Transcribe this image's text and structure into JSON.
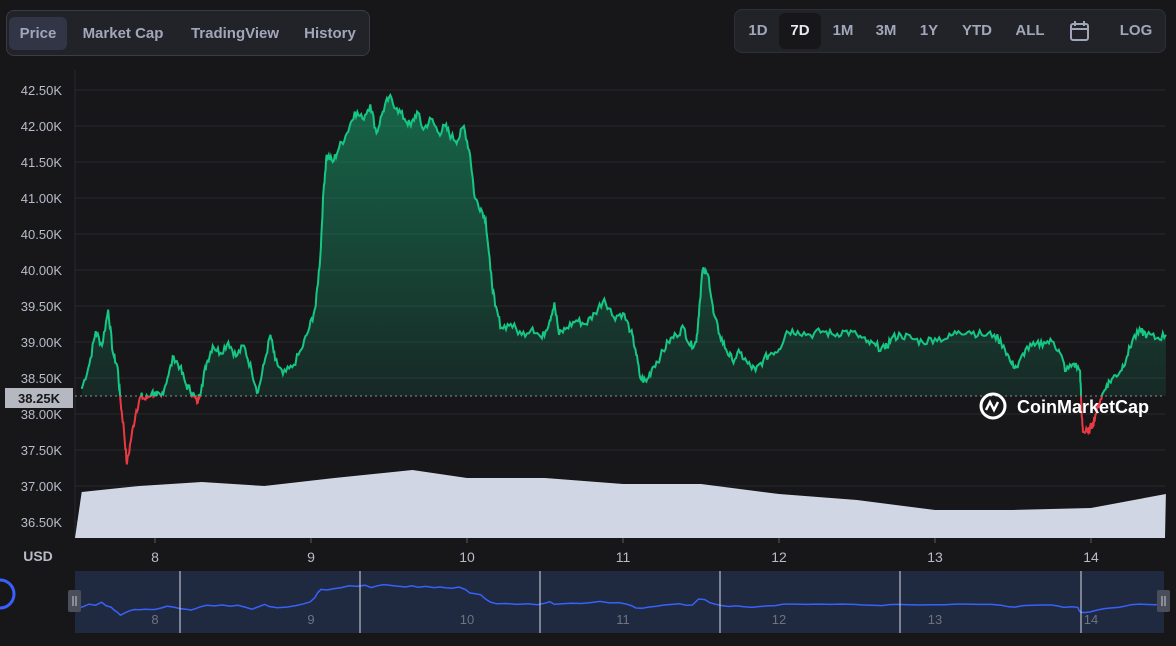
{
  "tabs": [
    {
      "label": "Price",
      "active": true
    },
    {
      "label": "Market Cap",
      "active": false
    },
    {
      "label": "TradingView",
      "active": false
    },
    {
      "label": "History",
      "active": false
    }
  ],
  "ranges": [
    {
      "label": "1D",
      "active": false
    },
    {
      "label": "7D",
      "active": true
    },
    {
      "label": "1M",
      "active": false
    },
    {
      "label": "3M",
      "active": false
    },
    {
      "label": "1Y",
      "active": false
    },
    {
      "label": "YTD",
      "active": false
    },
    {
      "label": "ALL",
      "active": false
    }
  ],
  "calendar_icon": "calendar-icon",
  "log_label": "LOG",
  "watermark": "CoinMarketCap",
  "chart_data": {
    "type": "line",
    "currency_label": "USD",
    "y_ticks": [
      "42.50K",
      "42.00K",
      "41.50K",
      "41.00K",
      "40.50K",
      "40.00K",
      "39.50K",
      "39.00K",
      "38.50K",
      "38.00K",
      "37.50K",
      "37.00K",
      "36.50K"
    ],
    "ylim": [
      36300,
      42750
    ],
    "x_ticks": [
      "8",
      "9",
      "10",
      "11",
      "12",
      "13",
      "14"
    ],
    "baseline": {
      "value": 38250,
      "label": "38.25K"
    },
    "colors": {
      "above": "#16c784",
      "below": "#ea3943",
      "volume": "#d0d6e4",
      "navigator": "#3861fb"
    },
    "x_range": [
      7.53,
      14.48
    ],
    "series": [
      {
        "x": 7.53,
        "y": 38350
      },
      {
        "x": 7.58,
        "y": 38700
      },
      {
        "x": 7.62,
        "y": 39150
      },
      {
        "x": 7.66,
        "y": 38950
      },
      {
        "x": 7.7,
        "y": 39450
      },
      {
        "x": 7.73,
        "y": 38850
      },
      {
        "x": 7.76,
        "y": 38650
      },
      {
        "x": 7.78,
        "y": 38150
      },
      {
        "x": 7.8,
        "y": 37800
      },
      {
        "x": 7.82,
        "y": 37300
      },
      {
        "x": 7.85,
        "y": 37700
      },
      {
        "x": 7.88,
        "y": 38050
      },
      {
        "x": 7.91,
        "y": 38250
      },
      {
        "x": 7.94,
        "y": 38200
      },
      {
        "x": 7.98,
        "y": 38300
      },
      {
        "x": 8.01,
        "y": 38250
      },
      {
        "x": 8.04,
        "y": 38250
      },
      {
        "x": 8.08,
        "y": 38500
      },
      {
        "x": 8.12,
        "y": 38800
      },
      {
        "x": 8.16,
        "y": 38650
      },
      {
        "x": 8.2,
        "y": 38400
      },
      {
        "x": 8.24,
        "y": 38300
      },
      {
        "x": 8.27,
        "y": 38150
      },
      {
        "x": 8.3,
        "y": 38400
      },
      {
        "x": 8.33,
        "y": 38700
      },
      {
        "x": 8.37,
        "y": 38950
      },
      {
        "x": 8.42,
        "y": 38850
      },
      {
        "x": 8.47,
        "y": 39000
      },
      {
        "x": 8.52,
        "y": 38800
      },
      {
        "x": 8.57,
        "y": 38950
      },
      {
        "x": 8.62,
        "y": 38600
      },
      {
        "x": 8.66,
        "y": 38300
      },
      {
        "x": 8.7,
        "y": 38700
      },
      {
        "x": 8.74,
        "y": 39100
      },
      {
        "x": 8.77,
        "y": 38750
      },
      {
        "x": 8.82,
        "y": 38550
      },
      {
        "x": 8.88,
        "y": 38650
      },
      {
        "x": 8.94,
        "y": 38900
      },
      {
        "x": 8.99,
        "y": 39200
      },
      {
        "x": 9.03,
        "y": 39500
      },
      {
        "x": 9.06,
        "y": 40200
      },
      {
        "x": 9.08,
        "y": 41100
      },
      {
        "x": 9.1,
        "y": 41600
      },
      {
        "x": 9.14,
        "y": 41500
      },
      {
        "x": 9.18,
        "y": 41700
      },
      {
        "x": 9.23,
        "y": 41900
      },
      {
        "x": 9.28,
        "y": 42200
      },
      {
        "x": 9.33,
        "y": 42100
      },
      {
        "x": 9.38,
        "y": 42300
      },
      {
        "x": 9.42,
        "y": 41900
      },
      {
        "x": 9.46,
        "y": 42200
      },
      {
        "x": 9.5,
        "y": 42400
      },
      {
        "x": 9.55,
        "y": 42250
      },
      {
        "x": 9.6,
        "y": 42100
      },
      {
        "x": 9.64,
        "y": 42000
      },
      {
        "x": 9.68,
        "y": 42200
      },
      {
        "x": 9.72,
        "y": 41950
      },
      {
        "x": 9.77,
        "y": 42100
      },
      {
        "x": 9.82,
        "y": 41900
      },
      {
        "x": 9.86,
        "y": 42000
      },
      {
        "x": 9.9,
        "y": 41850
      },
      {
        "x": 9.94,
        "y": 41800
      },
      {
        "x": 9.98,
        "y": 42000
      },
      {
        "x": 10.02,
        "y": 41600
      },
      {
        "x": 10.05,
        "y": 41000
      },
      {
        "x": 10.09,
        "y": 40850
      },
      {
        "x": 10.12,
        "y": 40700
      },
      {
        "x": 10.15,
        "y": 40000
      },
      {
        "x": 10.18,
        "y": 39500
      },
      {
        "x": 10.22,
        "y": 39200
      },
      {
        "x": 10.28,
        "y": 39250
      },
      {
        "x": 10.35,
        "y": 39100
      },
      {
        "x": 10.42,
        "y": 39200
      },
      {
        "x": 10.48,
        "y": 39050
      },
      {
        "x": 10.53,
        "y": 39300
      },
      {
        "x": 10.56,
        "y": 39550
      },
      {
        "x": 10.59,
        "y": 39100
      },
      {
        "x": 10.64,
        "y": 39200
      },
      {
        "x": 10.7,
        "y": 39300
      },
      {
        "x": 10.76,
        "y": 39250
      },
      {
        "x": 10.82,
        "y": 39400
      },
      {
        "x": 10.88,
        "y": 39600
      },
      {
        "x": 10.94,
        "y": 39350
      },
      {
        "x": 11.0,
        "y": 39400
      },
      {
        "x": 11.05,
        "y": 39150
      },
      {
        "x": 11.08,
        "y": 38900
      },
      {
        "x": 11.11,
        "y": 38500
      },
      {
        "x": 11.15,
        "y": 38450
      },
      {
        "x": 11.19,
        "y": 38650
      },
      {
        "x": 11.24,
        "y": 38800
      },
      {
        "x": 11.29,
        "y": 39000
      },
      {
        "x": 11.34,
        "y": 39100
      },
      {
        "x": 11.39,
        "y": 39200
      },
      {
        "x": 11.43,
        "y": 38950
      },
      {
        "x": 11.47,
        "y": 39000
      },
      {
        "x": 11.49,
        "y": 39500
      },
      {
        "x": 11.51,
        "y": 40000
      },
      {
        "x": 11.55,
        "y": 39900
      },
      {
        "x": 11.58,
        "y": 39400
      },
      {
        "x": 11.62,
        "y": 39100
      },
      {
        "x": 11.66,
        "y": 38900
      },
      {
        "x": 11.7,
        "y": 38750
      },
      {
        "x": 11.75,
        "y": 38850
      },
      {
        "x": 11.8,
        "y": 38700
      },
      {
        "x": 11.85,
        "y": 38600
      },
      {
        "x": 11.9,
        "y": 38750
      },
      {
        "x": 11.95,
        "y": 38850
      },
      {
        "x": 12.0,
        "y": 38900
      },
      {
        "x": 12.05,
        "y": 39150
      },
      {
        "x": 12.12,
        "y": 39150
      },
      {
        "x": 12.2,
        "y": 39100
      },
      {
        "x": 12.28,
        "y": 39150
      },
      {
        "x": 12.35,
        "y": 39100
      },
      {
        "x": 12.42,
        "y": 39150
      },
      {
        "x": 12.5,
        "y": 39100
      },
      {
        "x": 12.56,
        "y": 39000
      },
      {
        "x": 12.62,
        "y": 38950
      },
      {
        "x": 12.68,
        "y": 38900
      },
      {
        "x": 12.72,
        "y": 39050
      },
      {
        "x": 12.78,
        "y": 39100
      },
      {
        "x": 12.85,
        "y": 39050
      },
      {
        "x": 12.92,
        "y": 39000
      },
      {
        "x": 13.0,
        "y": 39050
      },
      {
        "x": 13.08,
        "y": 39050
      },
      {
        "x": 13.15,
        "y": 39150
      },
      {
        "x": 13.22,
        "y": 39150
      },
      {
        "x": 13.3,
        "y": 39100
      },
      {
        "x": 13.38,
        "y": 39100
      },
      {
        "x": 13.44,
        "y": 38950
      },
      {
        "x": 13.49,
        "y": 38700
      },
      {
        "x": 13.53,
        "y": 38650
      },
      {
        "x": 13.58,
        "y": 38900
      },
      {
        "x": 13.64,
        "y": 38950
      },
      {
        "x": 13.7,
        "y": 39000
      },
      {
        "x": 13.76,
        "y": 39000
      },
      {
        "x": 13.8,
        "y": 38850
      },
      {
        "x": 13.84,
        "y": 38600
      },
      {
        "x": 13.89,
        "y": 38700
      },
      {
        "x": 13.93,
        "y": 38600
      },
      {
        "x": 13.94,
        "y": 38000
      },
      {
        "x": 13.95,
        "y": 37750
      },
      {
        "x": 13.98,
        "y": 37750
      },
      {
        "x": 14.01,
        "y": 37850
      },
      {
        "x": 14.03,
        "y": 38000
      },
      {
        "x": 14.06,
        "y": 38200
      },
      {
        "x": 14.1,
        "y": 38400
      },
      {
        "x": 14.14,
        "y": 38500
      },
      {
        "x": 14.19,
        "y": 38600
      },
      {
        "x": 14.23,
        "y": 38800
      },
      {
        "x": 14.27,
        "y": 39050
      },
      {
        "x": 14.32,
        "y": 39150
      },
      {
        "x": 14.36,
        "y": 39100
      },
      {
        "x": 14.42,
        "y": 39050
      },
      {
        "x": 14.48,
        "y": 39100
      }
    ]
  }
}
